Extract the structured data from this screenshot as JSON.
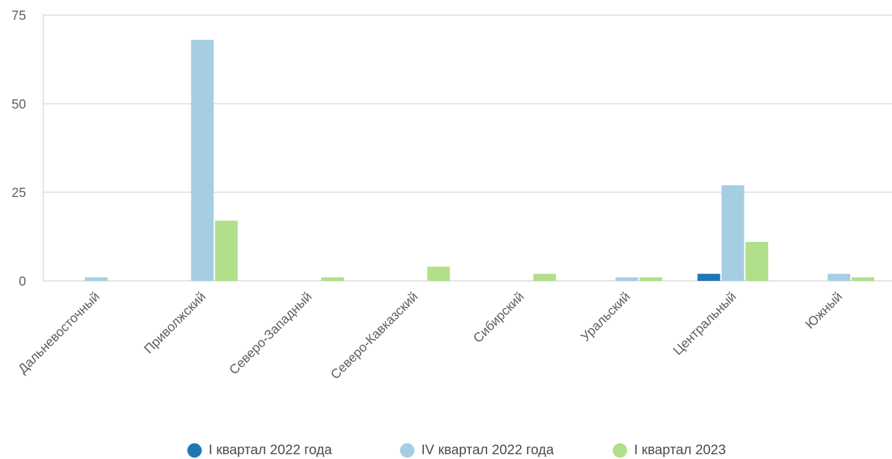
{
  "chart_data": {
    "type": "bar",
    "title": "",
    "xlabel": "",
    "ylabel": "",
    "ylim": [
      0,
      75
    ],
    "yticks": [
      0,
      25,
      50,
      75
    ],
    "grid": true,
    "legend_position": "bottom",
    "categories": [
      "Дальневосточный",
      "Приволжский",
      "Северо-Западный",
      "Северо-Кавказский",
      "Сибирский",
      "Уральский",
      "Центральный",
      "Южный"
    ],
    "series": [
      {
        "name": "I квартал 2022 года",
        "color": "#1f78b4",
        "values": [
          0,
          0,
          0,
          0,
          0,
          0,
          2,
          0
        ]
      },
      {
        "name": "IV квартал 2022 года",
        "color": "#a6cee3",
        "values": [
          1,
          68,
          0,
          0,
          0,
          1,
          27,
          2
        ]
      },
      {
        "name": "I квартал 2023",
        "color": "#b2df8a",
        "values": [
          0,
          17,
          1,
          4,
          2,
          1,
          11,
          1
        ]
      }
    ]
  }
}
